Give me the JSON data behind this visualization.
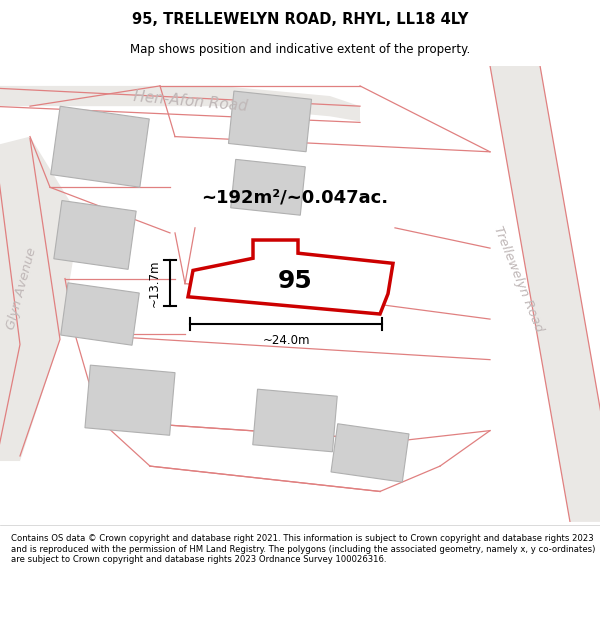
{
  "title": "95, TRELLEWELYN ROAD, RHYL, LL18 4LY",
  "subtitle": "Map shows position and indicative extent of the property.",
  "footer": "Contains OS data © Crown copyright and database right 2021. This information is subject to Crown copyright and database rights 2023 and is reproduced with the permission of HM Land Registry. The polygons (including the associated geometry, namely x, y co-ordinates) are subject to Crown copyright and database rights 2023 Ordnance Survey 100026316.",
  "map_bg": "#f2f0ee",
  "road_fill": "#e8e4e0",
  "road_line_color": "#e08080",
  "building_fill": "#d0d0d0",
  "building_edge": "#b0b0b0",
  "highlight_fill": "#ffffff",
  "highlight_edge": "#cc0000",
  "road_label_color": "#c0b8b8",
  "area_label": "~192m²/~0.047ac.",
  "property_label": "95",
  "dim_width": "~24.0m",
  "dim_height": "~13.7m",
  "road_name_1": "Hen-Afon Road",
  "road_name_2": "Trellewelyn Road",
  "road_name_3": "Glyn Avenue"
}
